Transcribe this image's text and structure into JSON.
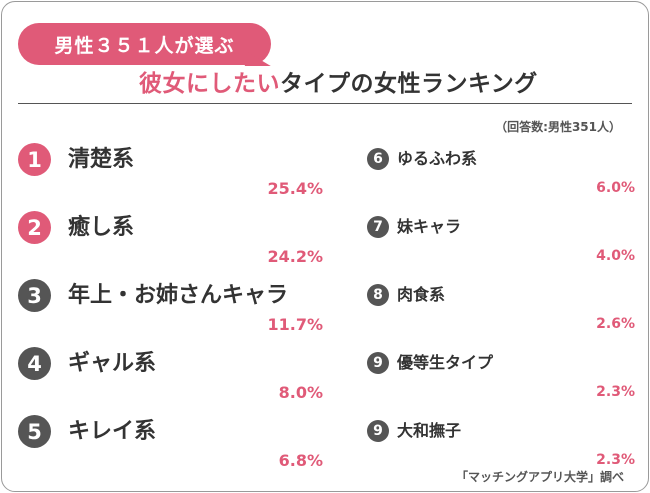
{
  "header": {
    "badge": "男性３５１人が選ぶ",
    "title_highlight": "彼女にしたい",
    "title_rest": "タイプの女性ランキング",
    "note": "（回答数:男性351人）",
    "source": "「マッチングアプリ大学」調べ"
  },
  "colors": {
    "accent": "#e05a78",
    "top_rank": "#e05a78",
    "other_rank": "#555555",
    "text": "#333333"
  },
  "chart_data": {
    "type": "table",
    "unit": "%",
    "items": [
      {
        "rank": "1",
        "label": "清楚系",
        "value": 25.4,
        "display": "25.4%"
      },
      {
        "rank": "2",
        "label": "癒し系",
        "value": 24.2,
        "display": "24.2%"
      },
      {
        "rank": "3",
        "label": "年上・お姉さんキャラ",
        "value": 11.7,
        "display": "11.7%"
      },
      {
        "rank": "4",
        "label": "ギャル系",
        "value": 8.0,
        "display": "8.0%"
      },
      {
        "rank": "5",
        "label": "キレイ系",
        "value": 6.8,
        "display": "6.8%"
      },
      {
        "rank": "6",
        "label": "ゆるふわ系",
        "value": 6.0,
        "display": "6.0%"
      },
      {
        "rank": "7",
        "label": "妹キャラ",
        "value": 4.0,
        "display": "4.0%"
      },
      {
        "rank": "8",
        "label": "肉食系",
        "value": 2.6,
        "display": "2.6%"
      },
      {
        "rank": "9",
        "label": "優等生タイプ",
        "value": 2.3,
        "display": "2.3%"
      },
      {
        "rank": "9",
        "label": "大和撫子",
        "value": 2.3,
        "display": "2.3%"
      }
    ]
  }
}
